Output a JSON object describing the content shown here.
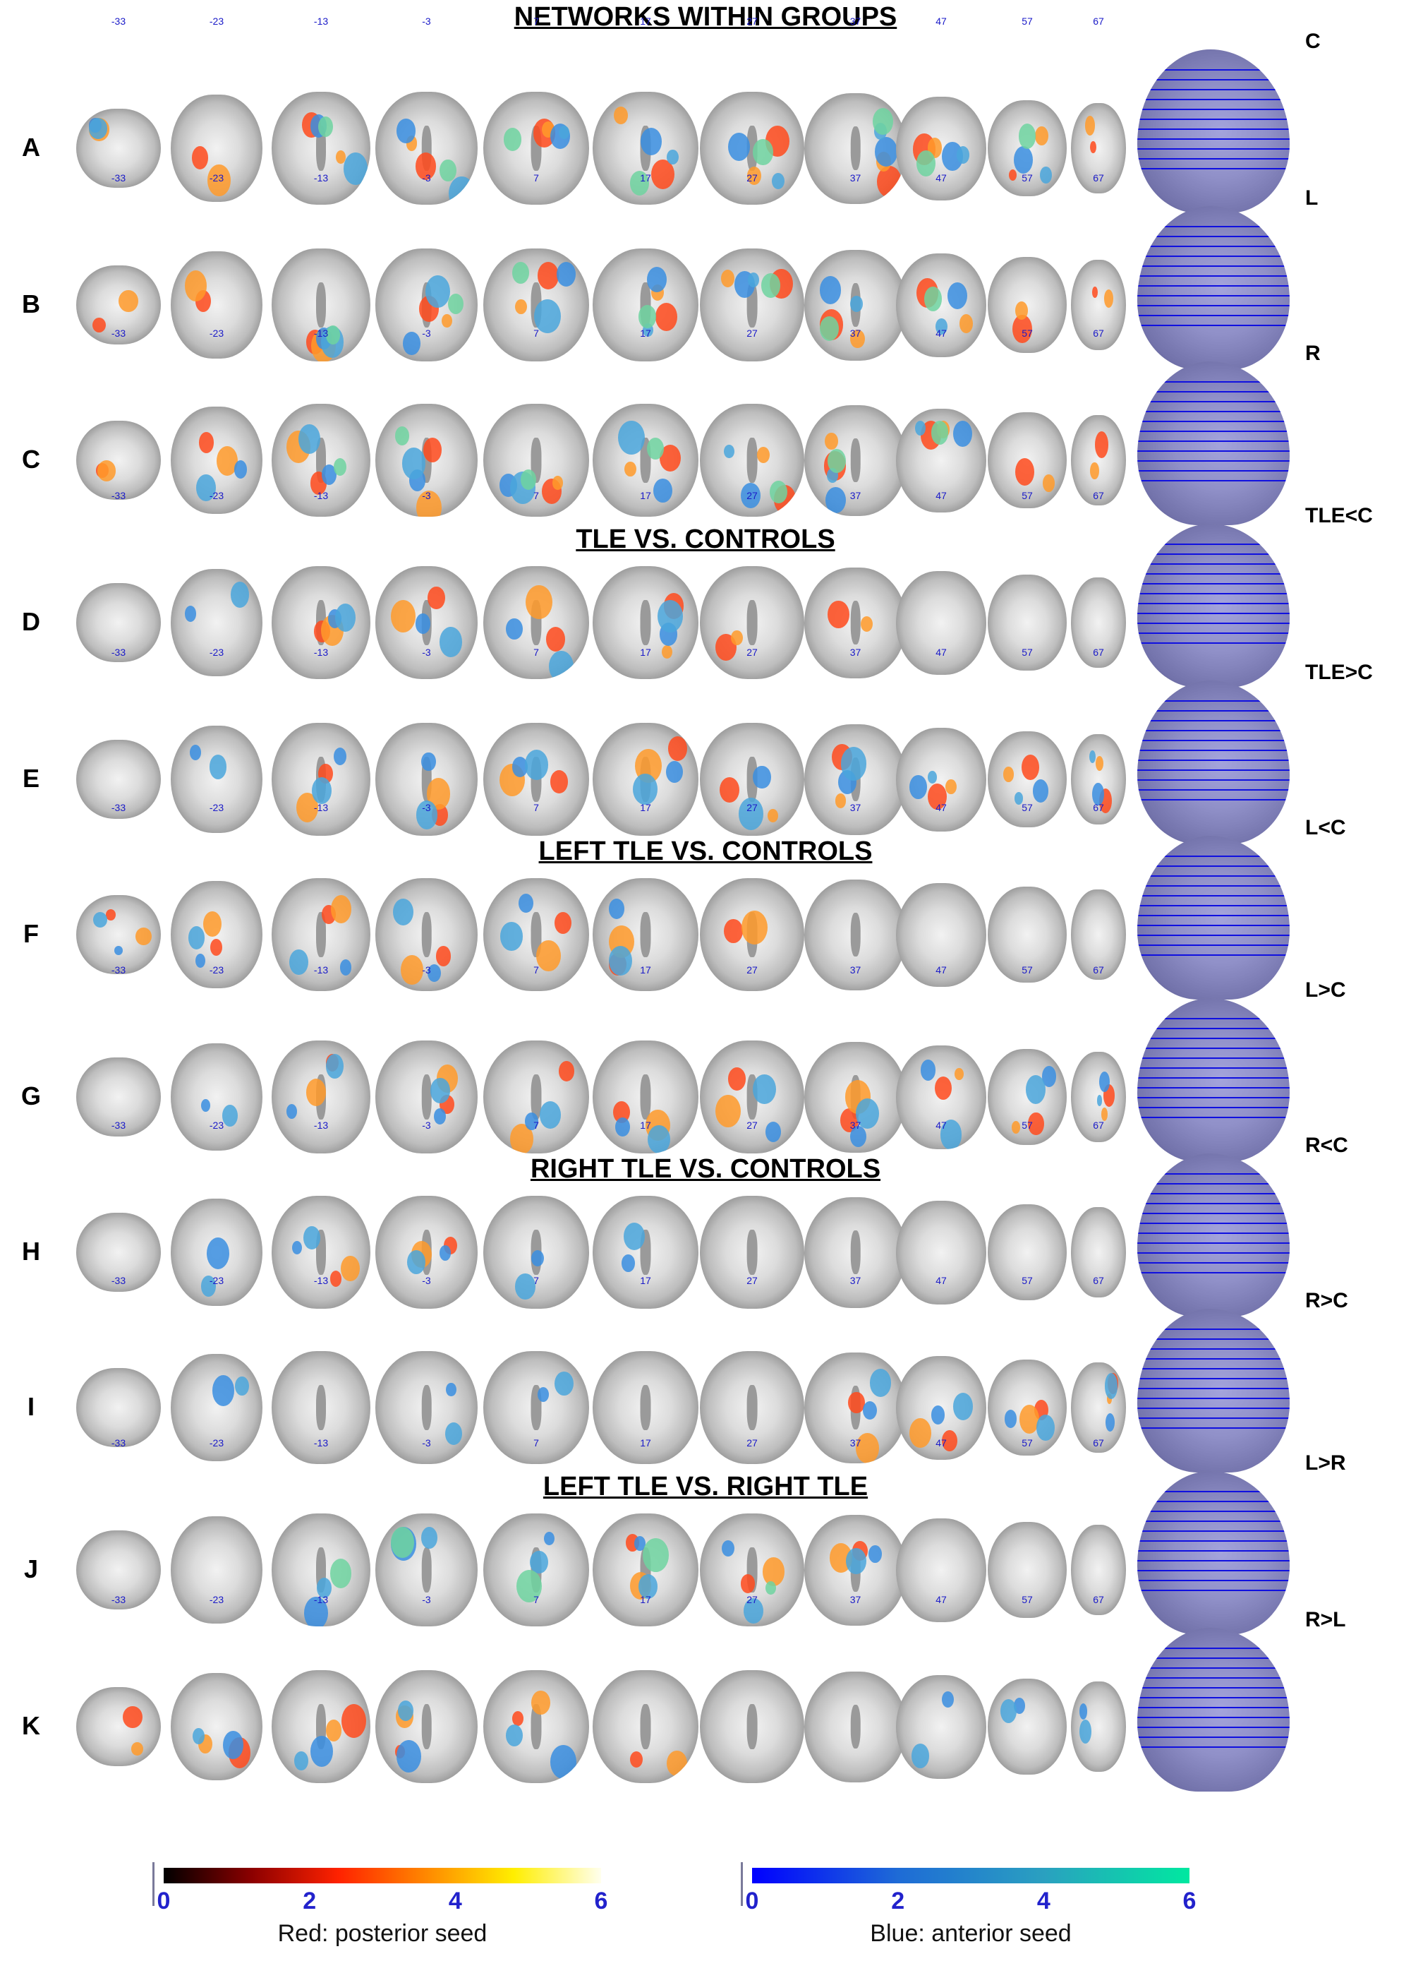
{
  "slice_labels": [
    "-33",
    "-23",
    "-13",
    "-3",
    "7",
    "17",
    "27",
    "37",
    "47",
    "57",
    "67"
  ],
  "sections": [
    {
      "title": "NETWORKS WITHIN GROUPS"
    },
    {
      "title": "TLE VS. CONTROLS"
    },
    {
      "title": "LEFT TLE VS. CONTROLS"
    },
    {
      "title": "RIGHT TLE VS. CONTROLS"
    },
    {
      "title": "LEFT TLE VS. RIGHT TLE"
    }
  ],
  "rows": [
    {
      "letter": "A",
      "contrast": "C",
      "red": [
        0,
        1,
        2,
        3,
        4,
        5,
        6,
        7,
        8,
        9,
        10
      ],
      "blue": [
        0,
        2,
        3,
        4,
        5,
        6,
        7,
        8,
        9
      ],
      "green": [
        2,
        3,
        4,
        5,
        6,
        7,
        8,
        9
      ]
    },
    {
      "letter": "B",
      "contrast": "L",
      "red": [
        0,
        1,
        2,
        3,
        4,
        5,
        6,
        7,
        8,
        9,
        10
      ],
      "blue": [
        2,
        3,
        4,
        5,
        6,
        7,
        8
      ],
      "green": [
        2,
        3,
        4,
        5,
        6,
        7,
        8
      ]
    },
    {
      "letter": "C",
      "contrast": "R",
      "red": [
        0,
        1,
        2,
        3,
        4,
        5,
        6,
        7,
        8,
        9,
        10
      ],
      "blue": [
        1,
        2,
        3,
        4,
        5,
        6,
        7,
        8
      ],
      "green": [
        2,
        3,
        4,
        5,
        6,
        7,
        8
      ]
    },
    {
      "letter": "D",
      "contrast": "TLE<C",
      "red": [
        2,
        3,
        4,
        5,
        6,
        7
      ],
      "blue": [
        1,
        2,
        3,
        4,
        5
      ],
      "green": []
    },
    {
      "letter": "E",
      "contrast": "TLE>C",
      "red": [
        2,
        3,
        4,
        5,
        6,
        7,
        8,
        9,
        10
      ],
      "blue": [
        1,
        2,
        3,
        4,
        5,
        6,
        7,
        8,
        9,
        10
      ],
      "green": []
    },
    {
      "letter": "F",
      "contrast": "L<C",
      "red": [
        0,
        1,
        2,
        3,
        4,
        5,
        6
      ],
      "blue": [
        0,
        1,
        2,
        3,
        4,
        5
      ],
      "green": []
    },
    {
      "letter": "G",
      "contrast": "L>C",
      "red": [
        2,
        3,
        4,
        5,
        6,
        7,
        8,
        9,
        10
      ],
      "blue": [
        1,
        2,
        3,
        4,
        5,
        6,
        7,
        8,
        9,
        10
      ],
      "green": []
    },
    {
      "letter": "H",
      "contrast": "R<C",
      "red": [
        2,
        3
      ],
      "blue": [
        1,
        2,
        3,
        4,
        5
      ],
      "green": []
    },
    {
      "letter": "I",
      "contrast": "R>C",
      "red": [
        7,
        8,
        9,
        10
      ],
      "blue": [
        1,
        3,
        4,
        7,
        8,
        9,
        10
      ],
      "green": []
    },
    {
      "letter": "J",
      "contrast": "L>R",
      "red": [
        5,
        6,
        7
      ],
      "blue": [
        2,
        3,
        4,
        5,
        6,
        7
      ],
      "green": [
        2,
        3,
        4,
        5,
        6
      ]
    },
    {
      "letter": "K",
      "contrast": "R>L",
      "red": [
        0,
        1,
        2,
        3,
        4,
        5
      ],
      "blue": [
        1,
        2,
        3,
        4,
        8,
        9,
        10
      ],
      "green": []
    }
  ],
  "colorbars": {
    "red": {
      "ticks": [
        "0",
        "2",
        "4",
        "6"
      ],
      "caption": "Red: posterior seed",
      "tick_color": "#2222cc",
      "gradient": [
        "#000000",
        "#8b0000",
        "#ff2200",
        "#ff8800",
        "#ffee00",
        "#ffffee"
      ]
    },
    "blue": {
      "ticks": [
        "0",
        "2",
        "4",
        "6"
      ],
      "caption": "Blue: anterior seed",
      "tick_color": "#2222cc",
      "gradient": [
        "#0000ff",
        "#1e6bd6",
        "#2aa0c0",
        "#00e8a0"
      ]
    }
  }
}
